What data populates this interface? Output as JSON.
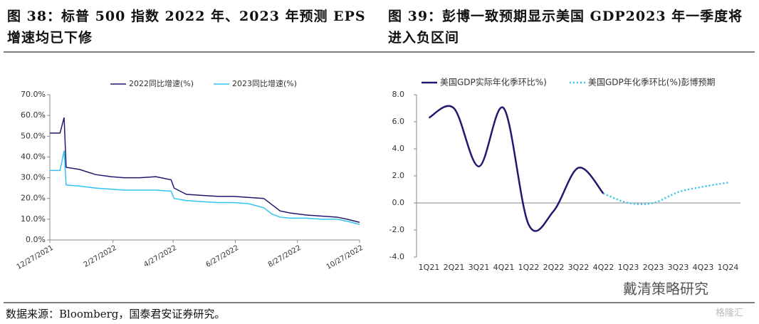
{
  "chart_data": [
    {
      "type": "line",
      "title": "图 38：标普 500 指数 2022 年、2023 年预测 EPS 增速均已下修",
      "x": [
        "12/27/2021",
        "1/6/2022",
        "1/10/2022",
        "1/12/2022",
        "1/25/2022",
        "2/10/2022",
        "2/25/2022",
        "3/10/2022",
        "3/25/2022",
        "4/10/2022",
        "4/25/2022",
        "4/28/2022",
        "5/10/2022",
        "5/25/2022",
        "6/10/2022",
        "6/25/2022",
        "7/10/2022",
        "7/25/2022",
        "8/2/2022",
        "8/10/2022",
        "8/20/2022",
        "9/5/2022",
        "9/20/2022",
        "10/5/2022",
        "10/15/2022",
        "10/27/2022"
      ],
      "series": [
        {
          "name": "2022同比增速(%)",
          "color": "#1f1a6e",
          "values": [
            51.5,
            51.5,
            59,
            35,
            34,
            31.5,
            30.5,
            30,
            30,
            30.5,
            29,
            25,
            22,
            21.5,
            21,
            21,
            20.5,
            20,
            17,
            14,
            13,
            12,
            11.5,
            11,
            10,
            8.5
          ]
        },
        {
          "name": "2023同比增速(%)",
          "color": "#33c3f0",
          "values": [
            33.5,
            33.5,
            43,
            26.5,
            26,
            25,
            24.5,
            24,
            24,
            24,
            23.5,
            20,
            19,
            18.5,
            18,
            18,
            17.5,
            15.5,
            12.5,
            11,
            10.5,
            10.5,
            10,
            10,
            9,
            7.5
          ]
        }
      ],
      "xlim": [
        "12/27/2021",
        "10/27/2022"
      ],
      "xticks": [
        "12/27/2021",
        "2/27/2022",
        "4/27/2022",
        "6/27/2022",
        "8/27/2022",
        "10/27/2022"
      ],
      "ylim": [
        0,
        70
      ],
      "yticks": [
        {
          "value": 0,
          "label": "0.0%"
        },
        {
          "value": 10,
          "label": "10.0%"
        },
        {
          "value": 20,
          "label": "20.0%"
        },
        {
          "value": 30,
          "label": "30.0%"
        },
        {
          "value": 40,
          "label": "40.0%"
        },
        {
          "value": 50,
          "label": "50.0%"
        },
        {
          "value": 60,
          "label": "60.0%"
        },
        {
          "value": 70,
          "label": "70.0%"
        }
      ]
    },
    {
      "type": "line",
      "title": "图 39：彭博一致预期显示美国 GDP2023 年一季度将进入负区间",
      "smooth": true,
      "categories": [
        "1Q21",
        "2Q21",
        "3Q21",
        "4Q21",
        "1Q22",
        "2Q22",
        "3Q22",
        "4Q22",
        "1Q23",
        "2Q23",
        "3Q23",
        "4Q23",
        "1Q24"
      ],
      "series": [
        {
          "name": "美国GDP实际年化季环比%)",
          "color": "#1f1a6e",
          "style": "solid",
          "values": [
            6.3,
            7.0,
            2.7,
            7.0,
            -1.6,
            -0.6,
            2.6,
            0.7,
            null,
            null,
            null,
            null,
            null
          ]
        },
        {
          "name": "美国GDP年化季环比(%)彭博预期",
          "color": "#33c3f0",
          "style": "dotted",
          "values": [
            null,
            null,
            null,
            null,
            null,
            null,
            null,
            0.7,
            0.0,
            0.0,
            0.8,
            1.2,
            1.5
          ]
        }
      ],
      "ylim": [
        -4,
        8
      ],
      "yticks": [
        {
          "value": -4,
          "label": "-4.0"
        },
        {
          "value": -2,
          "label": "-2.0"
        },
        {
          "value": 0,
          "label": "0.0"
        },
        {
          "value": 2,
          "label": "2.0"
        },
        {
          "value": 4,
          "label": "4.0"
        },
        {
          "value": 6,
          "label": "6.0"
        },
        {
          "value": 8,
          "label": "8.0"
        }
      ]
    }
  ],
  "source": "数据来源：Bloomberg，国泰君安证券研究。",
  "watermark": "戴清策略研究",
  "logo": "格隆汇"
}
